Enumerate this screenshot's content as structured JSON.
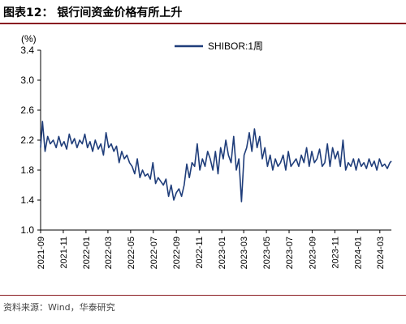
{
  "header": {
    "title": "图表12： 银行间资金价格有所上升"
  },
  "footer": {
    "source": "资料来源：Wind，华泰研究"
  },
  "chart_data": {
    "type": "line",
    "title": "",
    "xlabel": "",
    "ylabel": "(%)",
    "ylim": [
      1.0,
      3.4
    ],
    "yticks": [
      1.0,
      1.4,
      1.8,
      2.2,
      2.6,
      3.0,
      3.4
    ],
    "xrange": [
      "2021-09",
      "2024-04"
    ],
    "xticks": [
      "2021-09",
      "2021-11",
      "2022-01",
      "2022-03",
      "2022-05",
      "2022-07",
      "2022-09",
      "2022-11",
      "2023-01",
      "2023-03",
      "2023-05",
      "2023-07",
      "2023-09",
      "2023-11",
      "2024-01",
      "2024-03"
    ],
    "grid": false,
    "legend": "top-center",
    "colors": {
      "line": "#1f3d7a"
    },
    "series": [
      {
        "name": "SHIBOR:1周",
        "x": [
          "2021-09-01",
          "2021-09-06",
          "2021-09-13",
          "2021-09-20",
          "2021-09-27",
          "2021-10-05",
          "2021-10-13",
          "2021-10-20",
          "2021-10-27",
          "2021-11-03",
          "2021-11-10",
          "2021-11-17",
          "2021-11-24",
          "2021-12-01",
          "2021-12-08",
          "2021-12-15",
          "2021-12-22",
          "2021-12-29",
          "2022-01-05",
          "2022-01-12",
          "2022-01-19",
          "2022-01-26",
          "2022-02-03",
          "2022-02-10",
          "2022-02-17",
          "2022-02-24",
          "2022-03-03",
          "2022-03-10",
          "2022-03-17",
          "2022-03-24",
          "2022-03-31",
          "2022-04-07",
          "2022-04-14",
          "2022-04-21",
          "2022-04-28",
          "2022-05-05",
          "2022-05-12",
          "2022-05-19",
          "2022-05-26",
          "2022-06-02",
          "2022-06-09",
          "2022-06-16",
          "2022-06-23",
          "2022-06-30",
          "2022-07-07",
          "2022-07-14",
          "2022-07-21",
          "2022-07-28",
          "2022-08-04",
          "2022-08-11",
          "2022-08-18",
          "2022-08-25",
          "2022-09-01",
          "2022-09-08",
          "2022-09-15",
          "2022-09-22",
          "2022-09-29",
          "2022-10-06",
          "2022-10-13",
          "2022-10-20",
          "2022-10-27",
          "2022-11-03",
          "2022-11-10",
          "2022-11-17",
          "2022-11-24",
          "2022-12-01",
          "2022-12-08",
          "2022-12-15",
          "2022-12-22",
          "2022-12-29",
          "2023-01-05",
          "2023-01-12",
          "2023-01-19",
          "2023-01-26",
          "2023-02-02",
          "2023-02-09",
          "2023-02-16",
          "2023-02-23",
          "2023-03-02",
          "2023-03-09",
          "2023-03-16",
          "2023-03-23",
          "2023-03-30",
          "2023-04-06",
          "2023-04-13",
          "2023-04-20",
          "2023-04-27",
          "2023-05-04",
          "2023-05-11",
          "2023-05-18",
          "2023-05-25",
          "2023-06-01",
          "2023-06-08",
          "2023-06-15",
          "2023-06-22",
          "2023-06-29",
          "2023-07-06",
          "2023-07-13",
          "2023-07-20",
          "2023-07-27",
          "2023-08-03",
          "2023-08-10",
          "2023-08-17",
          "2023-08-24",
          "2023-08-31",
          "2023-09-07",
          "2023-09-14",
          "2023-09-21",
          "2023-09-28",
          "2023-10-05",
          "2023-10-12",
          "2023-10-19",
          "2023-10-26",
          "2023-11-02",
          "2023-11-09",
          "2023-11-16",
          "2023-11-23",
          "2023-11-30",
          "2023-12-07",
          "2023-12-14",
          "2023-12-21",
          "2023-12-28",
          "2024-01-04",
          "2024-01-11",
          "2024-01-18",
          "2024-01-25",
          "2024-02-01",
          "2024-02-08",
          "2024-02-15",
          "2024-02-22",
          "2024-02-29",
          "2024-03-07",
          "2024-03-14",
          "2024-03-21",
          "2024-03-28",
          "2024-04-01"
        ],
        "values": [
          2.1,
          2.45,
          2.05,
          2.25,
          2.15,
          2.2,
          2.1,
          2.25,
          2.12,
          2.18,
          2.08,
          2.28,
          2.15,
          2.22,
          2.1,
          2.2,
          2.15,
          2.28,
          2.1,
          2.18,
          2.05,
          2.2,
          2.08,
          2.15,
          2.0,
          2.3,
          2.1,
          2.15,
          2.05,
          2.12,
          1.9,
          2.05,
          1.95,
          2.0,
          1.9,
          1.85,
          1.75,
          1.95,
          1.7,
          1.8,
          1.72,
          1.75,
          1.68,
          1.9,
          1.62,
          1.7,
          1.65,
          1.6,
          1.68,
          1.45,
          1.6,
          1.4,
          1.5,
          1.55,
          1.45,
          1.6,
          1.88,
          1.7,
          1.9,
          1.85,
          2.15,
          1.8,
          1.95,
          1.85,
          2.05,
          1.95,
          1.8,
          2.05,
          1.75,
          2.1,
          1.95,
          2.2,
          2.0,
          1.9,
          2.25,
          1.8,
          1.95,
          1.38,
          2.0,
          2.1,
          2.3,
          2.05,
          2.35,
          2.1,
          2.25,
          1.95,
          2.1,
          1.85,
          2.0,
          1.8,
          1.95,
          1.85,
          1.9,
          2.0,
          1.8,
          2.05,
          1.85,
          1.9,
          1.95,
          1.85,
          2.0,
          1.9,
          2.1,
          1.85,
          2.05,
          1.9,
          1.95,
          2.08,
          1.85,
          1.9,
          2.15,
          1.85,
          2.1,
          1.95,
          2.05,
          1.85,
          2.2,
          1.8,
          1.9,
          1.85,
          1.95,
          1.8,
          1.95,
          1.85,
          1.9,
          1.82,
          1.95,
          1.85,
          1.92,
          1.8,
          1.95,
          1.85,
          1.88,
          1.82,
          1.9,
          1.92
        ]
      }
    ]
  }
}
